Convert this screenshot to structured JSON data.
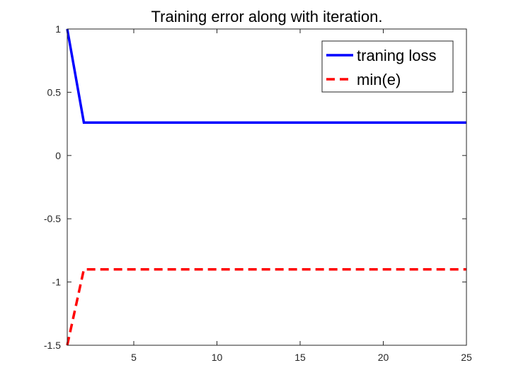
{
  "chart_data": {
    "type": "line",
    "title": "Training error along with iteration.",
    "xlabel": "",
    "ylabel": "",
    "xlim": [
      1,
      25
    ],
    "ylim": [
      -1.5,
      1
    ],
    "xticks": [
      5,
      10,
      15,
      20,
      25
    ],
    "xtick_labels": [
      "5",
      "10",
      "15",
      "20",
      "25"
    ],
    "yticks": [
      1,
      0.5,
      0,
      -0.5,
      -1,
      -1.5
    ],
    "ytick_labels": [
      "1",
      "0.5",
      "0",
      "-0.5",
      "-1",
      "-1.5"
    ],
    "grid": false,
    "legend_position": "top-right",
    "x": [
      1,
      2,
      3,
      4,
      5,
      6,
      7,
      8,
      9,
      10,
      11,
      12,
      13,
      14,
      15,
      16,
      17,
      18,
      19,
      20,
      21,
      22,
      23,
      24,
      25
    ],
    "series": [
      {
        "name": "traning loss",
        "color": "#0000ff",
        "style": "solid",
        "values": [
          1,
          0.26,
          0.26,
          0.26,
          0.26,
          0.26,
          0.26,
          0.26,
          0.26,
          0.26,
          0.26,
          0.26,
          0.26,
          0.26,
          0.26,
          0.26,
          0.26,
          0.26,
          0.26,
          0.26,
          0.26,
          0.26,
          0.26,
          0.26,
          0.26
        ]
      },
      {
        "name": "min(e)",
        "color": "#ff0000",
        "style": "dashed",
        "values": [
          -1.5,
          -0.9,
          -0.9,
          -0.9,
          -0.9,
          -0.9,
          -0.9,
          -0.9,
          -0.9,
          -0.9,
          -0.9,
          -0.9,
          -0.9,
          -0.9,
          -0.9,
          -0.9,
          -0.9,
          -0.9,
          -0.9,
          -0.9,
          -0.9,
          -0.9,
          -0.9,
          -0.9,
          -0.9
        ]
      }
    ]
  }
}
